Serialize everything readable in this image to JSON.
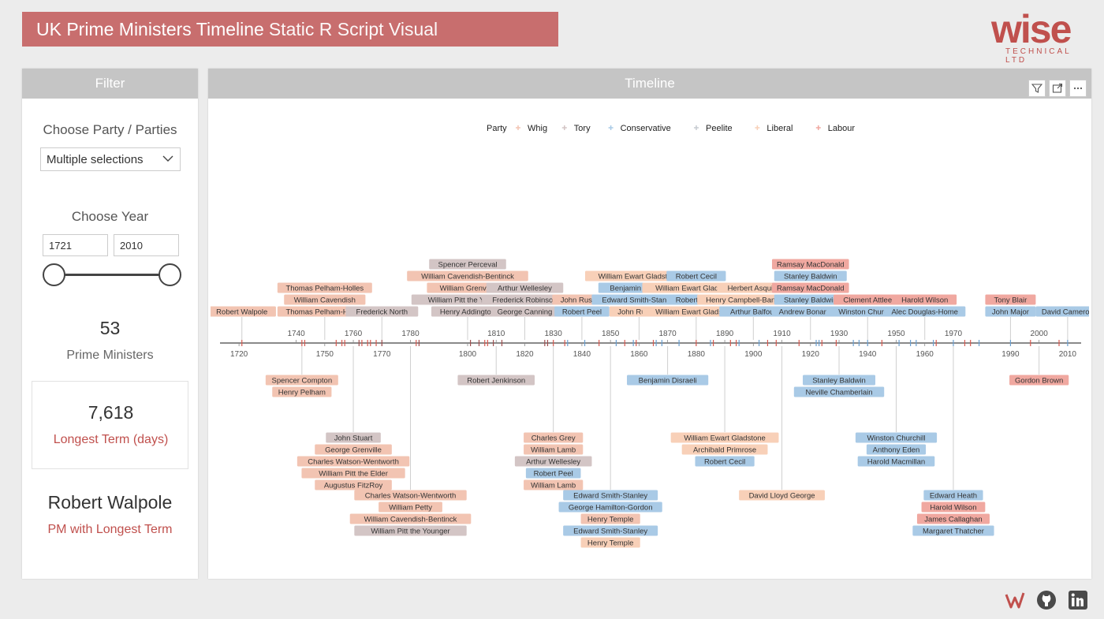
{
  "header": {
    "title_bold": "UK Prime Ministers Timeline",
    "title_light": "Static R Script Visual"
  },
  "logo": {
    "word": "wise",
    "subtitle": "TECHNICAL LTD"
  },
  "filter": {
    "panel_title": "Filter",
    "party_label": "Choose Party / Parties",
    "party_value": "Multiple selections",
    "year_label": "Choose Year",
    "year_start": "1721",
    "year_end": "2010",
    "pm_count": "53",
    "pm_count_label": "Prime Ministers",
    "longest_days": "7,618",
    "longest_days_label": "Longest Term (days)",
    "longest_pm": "Robert Walpole",
    "longest_pm_label": "PM with Longest Term"
  },
  "timeline_panel": {
    "title": "Timeline",
    "toolbar": [
      "filter-icon",
      "focus-mode-icon",
      "more-options-icon"
    ]
  },
  "footer_icons": [
    "wise-logo-icon",
    "github-icon",
    "linkedin-icon"
  ],
  "chart_data": {
    "type": "timeline",
    "legend_title": "Party",
    "parties": [
      {
        "name": "Whig",
        "color": "#f2c4b2"
      },
      {
        "name": "Tory",
        "color": "#d3c5c5"
      },
      {
        "name": "Conservative",
        "color": "#a9cae6"
      },
      {
        "name": "Peelite",
        "color": "#c7cbd1"
      },
      {
        "name": "Liberal",
        "color": "#f8d0b8"
      },
      {
        "name": "Labour",
        "color": "#f0a8a0"
      }
    ],
    "axis": {
      "min": 1715,
      "max": 2015,
      "ticks_below": [
        1720,
        1750,
        1770,
        1800,
        1820,
        1840,
        1860,
        1880,
        1900,
        1920,
        1940,
        1960,
        1990,
        2010
      ],
      "ticks_above": [
        1740,
        1760,
        1780,
        1810,
        1830,
        1850,
        1870,
        1890,
        1910,
        1930,
        1950,
        1970,
        2000
      ]
    },
    "groups": [
      {
        "year": 1721,
        "side": "above",
        "names": [
          {
            "n": "Robert Walpole",
            "p": "Whig"
          }
        ]
      },
      {
        "year": 1742,
        "side": "below",
        "names": [
          {
            "n": "Spencer Compton",
            "p": "Whig"
          },
          {
            "n": "Henry Pelham",
            "p": "Whig"
          }
        ]
      },
      {
        "year": 1750,
        "side": "above",
        "names": [
          {
            "n": "Thomas Pelham-Holles",
            "p": "Whig"
          },
          {
            "n": "William Cavendish",
            "p": "Whig"
          },
          {
            "n": "Thomas Pelham-Holles",
            "p": "Whig"
          }
        ]
      },
      {
        "year": 1760,
        "side": "below",
        "names": [
          {
            "n": "John Stuart",
            "p": "Tory"
          },
          {
            "n": "George Grenville",
            "p": "Whig"
          },
          {
            "n": "Charles Watson-Wentworth",
            "p": "Whig"
          },
          {
            "n": "William Pitt the Elder",
            "p": "Whig"
          },
          {
            "n": "Augustus FitzRoy",
            "p": "Whig"
          }
        ]
      },
      {
        "year": 1770,
        "side": "above",
        "names": [
          {
            "n": "Frederick North",
            "p": "Tory"
          }
        ]
      },
      {
        "year": 1780,
        "side": "below",
        "names": [
          {
            "n": "Charles Watson-Wentworth",
            "p": "Whig"
          },
          {
            "n": "William Petty",
            "p": "Whig"
          },
          {
            "n": "William Cavendish-Bentinck",
            "p": "Whig"
          },
          {
            "n": "William Pitt the Younger",
            "p": "Tory"
          }
        ]
      },
      {
        "year": 1800,
        "side": "above",
        "names": [
          {
            "n": "Spencer Perceval",
            "p": "Tory"
          },
          {
            "n": "William Cavendish-Bentinck",
            "p": "Whig"
          },
          {
            "n": "William Grenville",
            "p": "Whig"
          },
          {
            "n": "William Pitt the Younger",
            "p": "Tory"
          },
          {
            "n": "Henry Addington",
            "p": "Tory"
          }
        ]
      },
      {
        "year": 1810,
        "side": "below",
        "names": [
          {
            "n": "Robert Jenkinson",
            "p": "Tory"
          }
        ]
      },
      {
        "year": 1820,
        "side": "above",
        "names": [
          {
            "n": "Arthur Wellesley",
            "p": "Tory"
          },
          {
            "n": "Frederick Robinson",
            "p": "Tory"
          },
          {
            "n": "George Canning",
            "p": "Tory"
          }
        ]
      },
      {
        "year": 1830,
        "side": "below",
        "names": [
          {
            "n": "Charles Grey",
            "p": "Whig"
          },
          {
            "n": "William Lamb",
            "p": "Whig"
          },
          {
            "n": "Arthur Wellesley",
            "p": "Tory"
          },
          {
            "n": "Robert Peel",
            "p": "Conservative"
          },
          {
            "n": "William Lamb",
            "p": "Whig"
          }
        ]
      },
      {
        "year": 1840,
        "side": "above",
        "names": [
          {
            "n": "John Russell",
            "p": "Whig"
          },
          {
            "n": "Robert Peel",
            "p": "Conservative"
          }
        ]
      },
      {
        "year": 1850,
        "side": "below",
        "names": [
          {
            "n": "Edward Smith-Stanley",
            "p": "Conservative"
          },
          {
            "n": "George Hamilton-Gordon",
            "p": "Conservative"
          },
          {
            "n": "Henry Temple",
            "p": "Whig"
          },
          {
            "n": "Edward Smith-Stanley",
            "p": "Conservative"
          },
          {
            "n": "Henry Temple",
            "p": "Liberal"
          }
        ]
      },
      {
        "year": 1860,
        "side": "above",
        "names": [
          {
            "n": "William Ewart Gladstone",
            "p": "Liberal"
          },
          {
            "n": "Benjamin Disraeli",
            "p": "Conservative"
          },
          {
            "n": "Edward Smith-Stanley",
            "p": "Conservative"
          },
          {
            "n": "John Russell",
            "p": "Liberal"
          }
        ]
      },
      {
        "year": 1870,
        "side": "below",
        "names": [
          {
            "n": "Benjamin Disraeli",
            "p": "Conservative"
          }
        ]
      },
      {
        "year": 1880,
        "side": "above",
        "names": [
          {
            "n": "Robert Cecil",
            "p": "Conservative"
          },
          {
            "n": "William Ewart Gladstone",
            "p": "Liberal"
          },
          {
            "n": "Robert Cecil",
            "p": "Conservative"
          },
          {
            "n": "William Ewart Gladstone",
            "p": "Liberal"
          }
        ]
      },
      {
        "year": 1890,
        "side": "below",
        "names": [
          {
            "n": "William Ewart Gladstone",
            "p": "Liberal"
          },
          {
            "n": "Archibald Primrose",
            "p": "Liberal"
          },
          {
            "n": "Robert Cecil",
            "p": "Conservative"
          }
        ]
      },
      {
        "year": 1900,
        "side": "above",
        "names": [
          {
            "n": "Herbert Asquith",
            "p": "Liberal"
          },
          {
            "n": "Henry Campbell-Bannerman",
            "p": "Liberal"
          },
          {
            "n": "Arthur Balfour",
            "p": "Conservative"
          }
        ]
      },
      {
        "year": 1910,
        "side": "below",
        "names": [
          {
            "n": "David Lloyd George",
            "p": "Liberal"
          }
        ]
      },
      {
        "year": 1920,
        "side": "above",
        "names": [
          {
            "n": "Ramsay MacDonald",
            "p": "Labour"
          },
          {
            "n": "Stanley Baldwin",
            "p": "Conservative"
          },
          {
            "n": "Ramsay MacDonald",
            "p": "Labour"
          },
          {
            "n": "Stanley Baldwin",
            "p": "Conservative"
          },
          {
            "n": "Andrew Bonar Law",
            "p": "Conservative"
          }
        ]
      },
      {
        "year": 1930,
        "side": "below",
        "names": [
          {
            "n": "Stanley Baldwin",
            "p": "Conservative"
          },
          {
            "n": "Neville Chamberlain",
            "p": "Conservative"
          }
        ]
      },
      {
        "year": 1940,
        "side": "above",
        "names": [
          {
            "n": "Clement Attlee",
            "p": "Labour"
          },
          {
            "n": "Winston Churchill",
            "p": "Conservative"
          }
        ]
      },
      {
        "year": 1950,
        "side": "below",
        "names": [
          {
            "n": "Winston Churchill",
            "p": "Conservative"
          },
          {
            "n": "Anthony Eden",
            "p": "Conservative"
          },
          {
            "n": "Harold Macmillan",
            "p": "Conservative"
          }
        ]
      },
      {
        "year": 1960,
        "side": "above",
        "names": [
          {
            "n": "Harold Wilson",
            "p": "Labour"
          },
          {
            "n": "Alec Douglas-Home",
            "p": "Conservative"
          }
        ]
      },
      {
        "year": 1970,
        "side": "below",
        "names": [
          {
            "n": "Edward Heath",
            "p": "Conservative"
          },
          {
            "n": "Harold Wilson",
            "p": "Labour"
          },
          {
            "n": "James Callaghan",
            "p": "Labour"
          },
          {
            "n": "Margaret Thatcher",
            "p": "Conservative"
          }
        ]
      },
      {
        "year": 1990,
        "side": "above",
        "names": [
          {
            "n": "Tony Blair",
            "p": "Labour"
          },
          {
            "n": "John Major",
            "p": "Conservative"
          }
        ]
      },
      {
        "year": 2000,
        "side": "below",
        "names": [
          {
            "n": "Gordon Brown",
            "p": "Labour"
          }
        ]
      },
      {
        "year": 2010,
        "side": "above",
        "names": [
          {
            "n": "David Cameron",
            "p": "Conservative"
          }
        ]
      }
    ],
    "markers": [
      {
        "year": 1721,
        "p": "Whig"
      },
      {
        "year": 1742,
        "p": "Whig"
      },
      {
        "year": 1743,
        "p": "Whig"
      },
      {
        "year": 1754,
        "p": "Whig"
      },
      {
        "year": 1756,
        "p": "Whig"
      },
      {
        "year": 1757,
        "p": "Whig"
      },
      {
        "year": 1762,
        "p": "Tory"
      },
      {
        "year": 1763,
        "p": "Whig"
      },
      {
        "year": 1765,
        "p": "Whig"
      },
      {
        "year": 1766,
        "p": "Whig"
      },
      {
        "year": 1768,
        "p": "Whig"
      },
      {
        "year": 1770,
        "p": "Tory"
      },
      {
        "year": 1782,
        "p": "Whig"
      },
      {
        "year": 1783,
        "p": "Tory"
      },
      {
        "year": 1801,
        "p": "Tory"
      },
      {
        "year": 1804,
        "p": "Tory"
      },
      {
        "year": 1806,
        "p": "Whig"
      },
      {
        "year": 1807,
        "p": "Whig"
      },
      {
        "year": 1809,
        "p": "Tory"
      },
      {
        "year": 1812,
        "p": "Tory"
      },
      {
        "year": 1827,
        "p": "Tory"
      },
      {
        "year": 1828,
        "p": "Tory"
      },
      {
        "year": 1830,
        "p": "Whig"
      },
      {
        "year": 1834,
        "p": "Whig"
      },
      {
        "year": 1835,
        "p": "Conservative"
      },
      {
        "year": 1841,
        "p": "Conservative"
      },
      {
        "year": 1846,
        "p": "Whig"
      },
      {
        "year": 1852,
        "p": "Conservative"
      },
      {
        "year": 1855,
        "p": "Whig"
      },
      {
        "year": 1858,
        "p": "Conservative"
      },
      {
        "year": 1859,
        "p": "Liberal"
      },
      {
        "year": 1865,
        "p": "Liberal"
      },
      {
        "year": 1866,
        "p": "Conservative"
      },
      {
        "year": 1868,
        "p": "Conservative"
      },
      {
        "year": 1874,
        "p": "Conservative"
      },
      {
        "year": 1880,
        "p": "Liberal"
      },
      {
        "year": 1885,
        "p": "Conservative"
      },
      {
        "year": 1886,
        "p": "Liberal"
      },
      {
        "year": 1892,
        "p": "Liberal"
      },
      {
        "year": 1894,
        "p": "Liberal"
      },
      {
        "year": 1895,
        "p": "Conservative"
      },
      {
        "year": 1902,
        "p": "Conservative"
      },
      {
        "year": 1905,
        "p": "Liberal"
      },
      {
        "year": 1908,
        "p": "Liberal"
      },
      {
        "year": 1916,
        "p": "Liberal"
      },
      {
        "year": 1922,
        "p": "Conservative"
      },
      {
        "year": 1923,
        "p": "Conservative"
      },
      {
        "year": 1924,
        "p": "Labour"
      },
      {
        "year": 1929,
        "p": "Labour"
      },
      {
        "year": 1935,
        "p": "Conservative"
      },
      {
        "year": 1937,
        "p": "Conservative"
      },
      {
        "year": 1940,
        "p": "Conservative"
      },
      {
        "year": 1945,
        "p": "Labour"
      },
      {
        "year": 1951,
        "p": "Conservative"
      },
      {
        "year": 1955,
        "p": "Conservative"
      },
      {
        "year": 1957,
        "p": "Conservative"
      },
      {
        "year": 1963,
        "p": "Conservative"
      },
      {
        "year": 1964,
        "p": "Labour"
      },
      {
        "year": 1970,
        "p": "Conservative"
      },
      {
        "year": 1974,
        "p": "Labour"
      },
      {
        "year": 1976,
        "p": "Labour"
      },
      {
        "year": 1979,
        "p": "Conservative"
      },
      {
        "year": 1990,
        "p": "Conservative"
      },
      {
        "year": 1997,
        "p": "Labour"
      },
      {
        "year": 2007,
        "p": "Labour"
      },
      {
        "year": 2010,
        "p": "Conservative"
      }
    ]
  }
}
